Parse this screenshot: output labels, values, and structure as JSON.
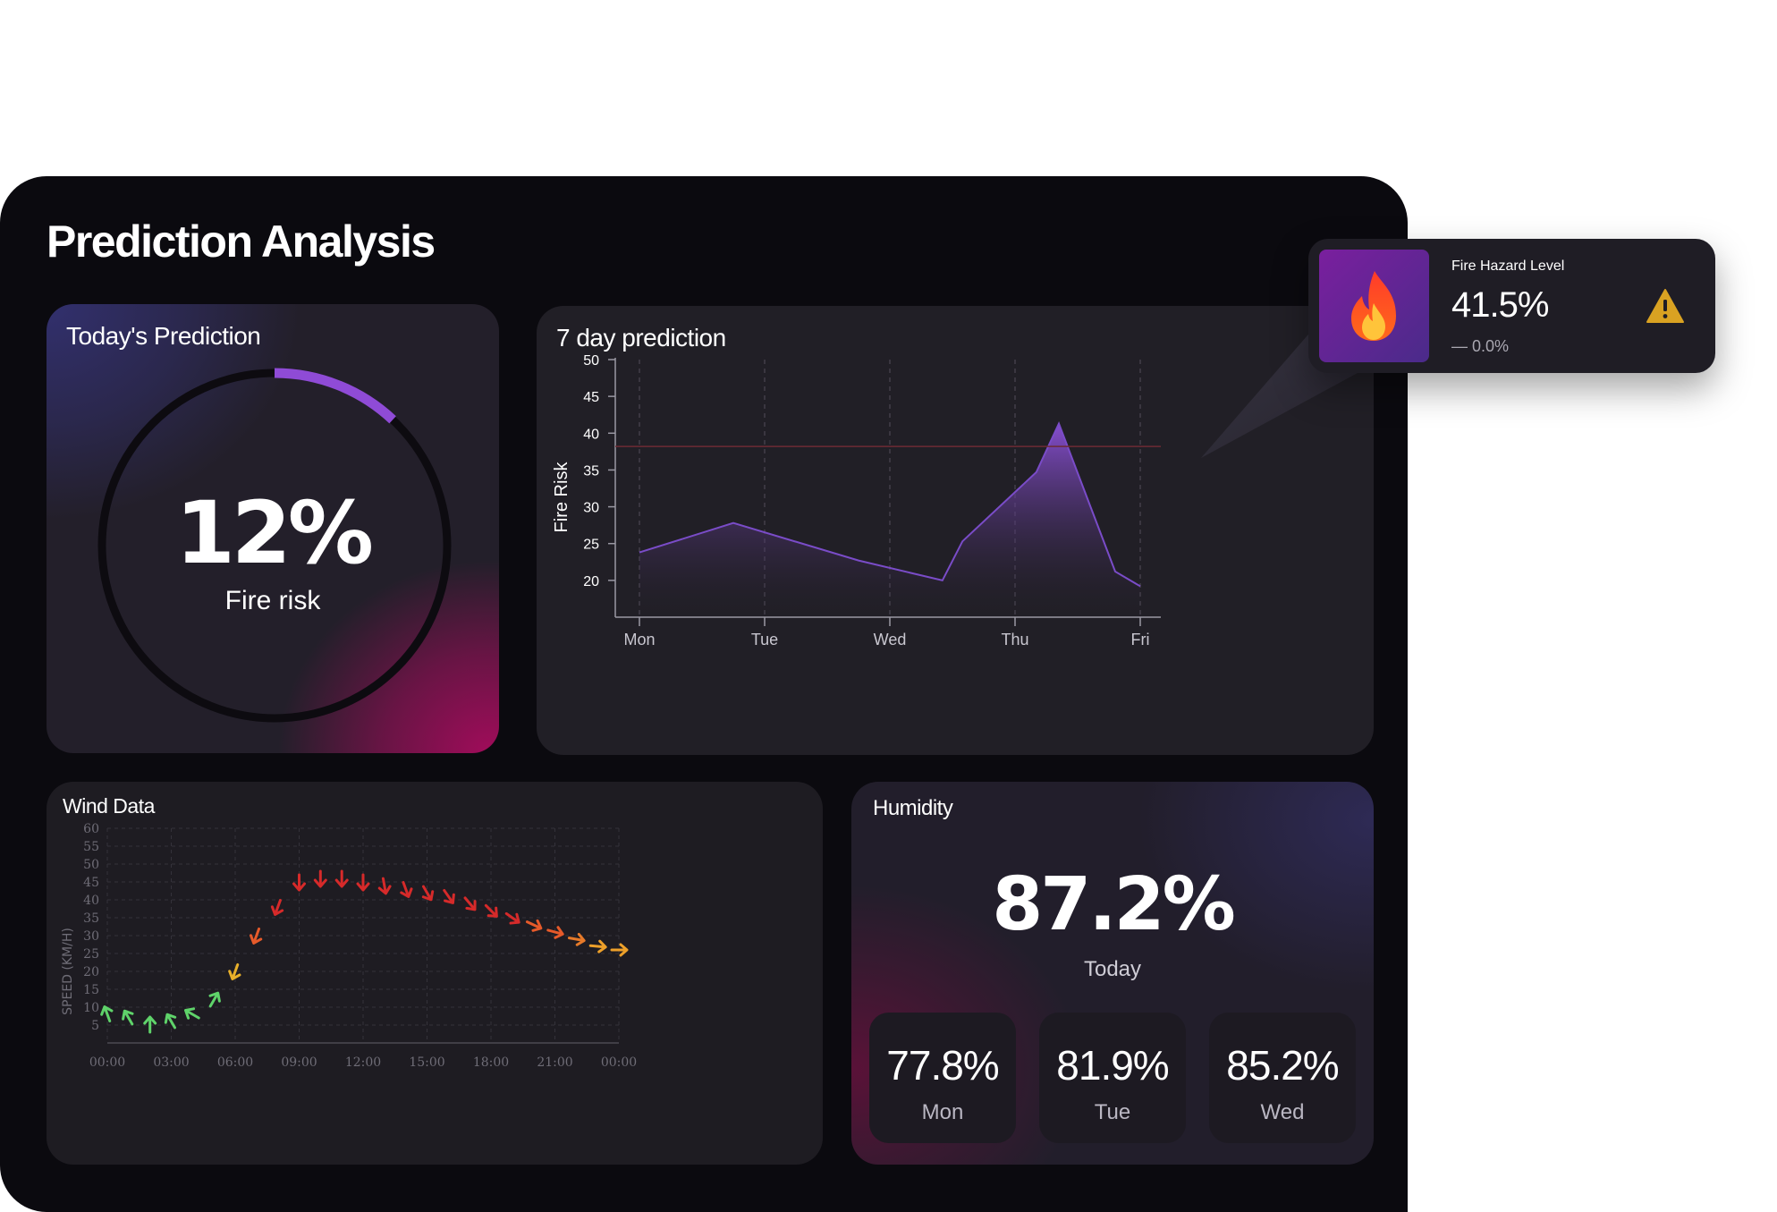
{
  "page_title": "Prediction Analysis",
  "today": {
    "title": "Today's Prediction",
    "value": 12,
    "value_text": "12%",
    "label": "Fire risk",
    "arc_color": "#8f4bd6"
  },
  "week": {
    "title": "7 day prediction",
    "chart_data": {
      "type": "area",
      "title": "7 day prediction",
      "ylabel": "Fire Risk",
      "xlabel": "",
      "ylim": [
        15,
        50
      ],
      "yticks": [
        20,
        25,
        30,
        35,
        40,
        45,
        50
      ],
      "categories": [
        "Mon",
        "Tue",
        "Wed",
        "Thu",
        "Fri"
      ],
      "x": [
        0,
        0.75,
        1.75,
        2.42,
        2.58,
        3.17,
        3.35,
        3.8,
        4.0
      ],
      "values": [
        23.8,
        27.8,
        22.7,
        20.0,
        25.3,
        34.7,
        41.3,
        21.2,
        19.2
      ],
      "threshold": 38.2,
      "grid": "vertical-dashed",
      "color": "#7a4cc8"
    }
  },
  "wind": {
    "title": "Wind Data",
    "chart_data": {
      "type": "scatter",
      "title": "Wind Data",
      "ylabel": "SPEED (KM/H)",
      "ylim": [
        0,
        60
      ],
      "yticks": [
        5,
        10,
        15,
        20,
        25,
        30,
        35,
        40,
        45,
        50,
        55,
        60
      ],
      "xticks": [
        "00:00",
        "03:00",
        "06:00",
        "09:00",
        "12:00",
        "15:00",
        "18:00",
        "21:00",
        "00:00"
      ],
      "x": [
        0,
        1,
        2,
        3,
        4,
        5,
        6,
        7,
        8,
        9,
        10,
        11,
        12,
        13,
        14,
        15,
        16,
        17,
        18,
        19,
        20,
        21,
        22,
        23,
        24
      ],
      "values": [
        8,
        7,
        5,
        6,
        8,
        12,
        20,
        30,
        38,
        45,
        46,
        46,
        45,
        44,
        43,
        42,
        41,
        39,
        37,
        35,
        33,
        31,
        29,
        27,
        26
      ],
      "direction_deg": [
        340,
        330,
        0,
        330,
        300,
        30,
        200,
        200,
        200,
        180,
        180,
        180,
        180,
        170,
        160,
        150,
        145,
        140,
        135,
        125,
        115,
        105,
        100,
        95,
        90
      ],
      "colors": [
        "#5fd36a",
        "#5fd36a",
        "#5fd36a",
        "#5fd36a",
        "#5fd36a",
        "#5fd36a",
        "#e8b02a",
        "#e65a2a",
        "#d62a2a",
        "#d62a2a",
        "#d62a2a",
        "#d62a2a",
        "#d62a2a",
        "#d62a2a",
        "#d62a2a",
        "#d62a2a",
        "#d62a2a",
        "#d62a2a",
        "#d62a2a",
        "#d62a2a",
        "#e65a2a",
        "#e65a2a",
        "#e67a2a",
        "#eda02a",
        "#eda02a"
      ]
    }
  },
  "humidity": {
    "title": "Humidity",
    "today_value": "87.2%",
    "today_label": "Today",
    "days": [
      {
        "value": "77.8%",
        "name": "Mon"
      },
      {
        "value": "81.9%",
        "name": "Tue"
      },
      {
        "value": "85.2%",
        "name": "Wed"
      }
    ]
  },
  "tooltip": {
    "title": "Fire Hazard Level",
    "value": "41.5%",
    "change": "— 0.0%",
    "icon": "fire-icon",
    "warning_icon": "warning-icon",
    "warning_color": "#d9a222"
  }
}
